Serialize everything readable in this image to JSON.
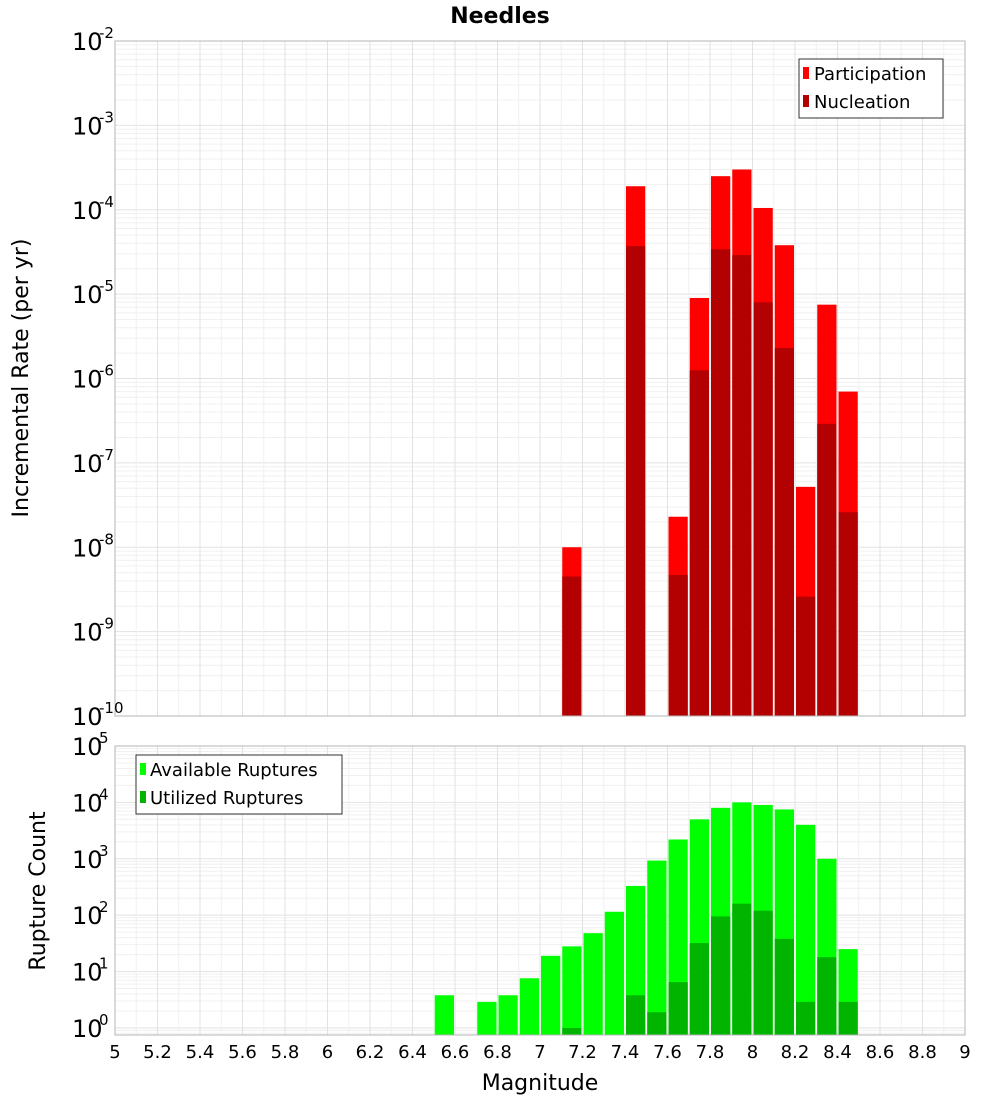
{
  "title": "Needles",
  "chart_data": [
    {
      "type": "bar",
      "xlabel": "Magnitude",
      "ylabel": "Incremental Rate (per yr)",
      "xlim": [
        5,
        9
      ],
      "ylim": [
        1e-10,
        0.01
      ],
      "yscale": "log",
      "grid": true,
      "legend_placement": "top-right",
      "x": [
        7.15,
        7.45,
        7.65,
        7.75,
        7.85,
        7.95,
        8.05,
        8.15,
        8.25,
        8.35,
        8.45
      ],
      "series": [
        {
          "name": "Participation",
          "color": "#ff0000",
          "values": [
            1e-08,
            0.00019,
            2.3e-08,
            9e-06,
            0.00025,
            0.0003,
            0.000105,
            3.8e-05,
            5.2e-08,
            7.5e-06,
            7e-07
          ]
        },
        {
          "name": "Nucleation",
          "color": "#b30000",
          "values": [
            4.5e-09,
            3.7e-05,
            4.7e-09,
            1.25e-06,
            3.4e-05,
            2.9e-05,
            8e-06,
            2.3e-06,
            2.6e-09,
            2.9e-07,
            2.6e-08
          ]
        }
      ]
    },
    {
      "type": "bar",
      "xlabel": "Magnitude",
      "ylabel": "Rupture Count",
      "xlim": [
        5,
        9
      ],
      "ylim": [
        0.75,
        100000.0
      ],
      "yscale": "log",
      "grid": true,
      "legend_placement": "top-left",
      "x": [
        6.55,
        6.75,
        6.85,
        6.95,
        7.05,
        7.15,
        7.25,
        7.35,
        7.45,
        7.55,
        7.65,
        7.75,
        7.85,
        7.95,
        8.05,
        8.15,
        8.25,
        8.35,
        8.45
      ],
      "series": [
        {
          "name": "Available Ruptures",
          "color": "#00ff00",
          "values": [
            3.8,
            2.9,
            3.8,
            7.6,
            19,
            28,
            48,
            115,
            330,
            930,
            2200,
            5000,
            8000,
            10000,
            9000,
            7500,
            4000,
            1000,
            25
          ]
        },
        {
          "name": "Utilized Ruptures",
          "color": "#00b400",
          "values": [
            0,
            0,
            0,
            0,
            0,
            1,
            0,
            0,
            3.8,
            1.9,
            6.5,
            32,
            95,
            160,
            120,
            38,
            2.9,
            18,
            2.9
          ]
        }
      ]
    }
  ],
  "x_tick_labels": [
    "5",
    "5.2",
    "5.4",
    "5.6",
    "5.8",
    "6",
    "6.2",
    "6.4",
    "6.6",
    "6.8",
    "7",
    "7.2",
    "7.4",
    "7.6",
    "7.8",
    "8",
    "8.2",
    "8.4",
    "8.6",
    "8.8",
    "9"
  ],
  "top_y_ticks": [
    {
      "base": "10",
      "exp": "-10",
      "value": 1e-10
    },
    {
      "base": "10",
      "exp": "-9",
      "value": 1e-09
    },
    {
      "base": "10",
      "exp": "-8",
      "value": 1e-08
    },
    {
      "base": "10",
      "exp": "-7",
      "value": 1e-07
    },
    {
      "base": "10",
      "exp": "-6",
      "value": 1e-06
    },
    {
      "base": "10",
      "exp": "-5",
      "value": 1e-05
    },
    {
      "base": "10",
      "exp": "-4",
      "value": 0.0001
    },
    {
      "base": "10",
      "exp": "-3",
      "value": 0.001
    },
    {
      "base": "10",
      "exp": "-2",
      "value": 0.01
    }
  ],
  "bottom_y_ticks": [
    {
      "base": "10",
      "exp": "0",
      "value": 1
    },
    {
      "base": "10",
      "exp": "1",
      "value": 10
    },
    {
      "base": "10",
      "exp": "2",
      "value": 100
    },
    {
      "base": "10",
      "exp": "3",
      "value": 1000
    },
    {
      "base": "10",
      "exp": "4",
      "value": 10000
    },
    {
      "base": "10",
      "exp": "5",
      "value": 100000
    }
  ]
}
